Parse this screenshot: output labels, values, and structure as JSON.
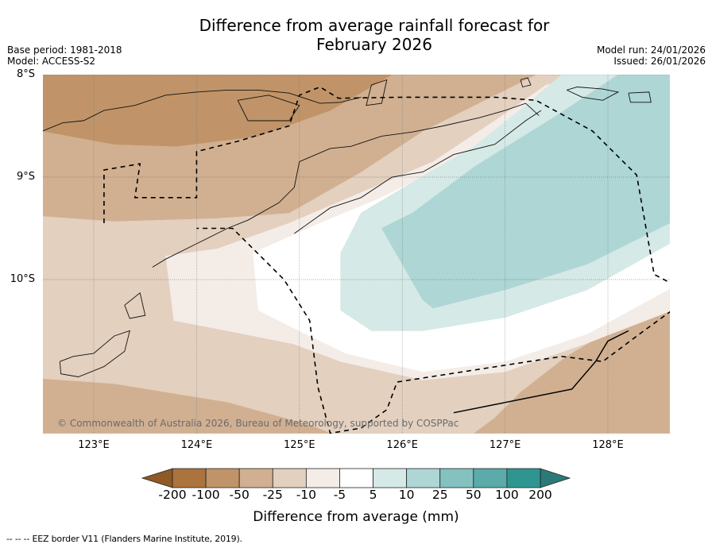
{
  "header": {
    "title_line1": "Difference from average rainfall forecast for",
    "title_line2": "February 2026",
    "base_period": "Base period: 1981-2018",
    "model": "Model: ACCESS-S2",
    "model_run": "Model run: 24/01/2026",
    "issued": "Issued: 26/01/2026"
  },
  "map": {
    "extent": {
      "lon_min": 122.5,
      "lon_max": 128.6,
      "lat_min": -11.5,
      "lat_max": -8.0
    },
    "lat_ticks": [
      {
        "value": -8,
        "label": "8°S"
      },
      {
        "value": -9,
        "label": "9°S"
      },
      {
        "value": -10,
        "label": "10°S"
      }
    ],
    "lon_ticks": [
      {
        "value": 123,
        "label": "123°E"
      },
      {
        "value": 124,
        "label": "124°E"
      },
      {
        "value": 125,
        "label": "125°E"
      },
      {
        "value": 126,
        "label": "126°E"
      },
      {
        "value": 127,
        "label": "127°E"
      },
      {
        "value": 128,
        "label": "128°E"
      }
    ],
    "copyright": "© Commonwealth of Australia 2026, Bureau of Meteorology, supported by COSPPac",
    "regions": [
      {
        "name": "dry-25-to-10",
        "color": "#e3d0bf",
        "poly": [
          [
            122.5,
            -9.4
          ],
          [
            128.6,
            -9.4
          ],
          [
            128.6,
            -11.5
          ],
          [
            122.5,
            -11.5
          ]
        ]
      },
      {
        "name": "dry-50-to-25-south",
        "color": "#d1b091",
        "poly": [
          [
            122.5,
            -10.97
          ],
          [
            123.2,
            -11.02
          ],
          [
            124.3,
            -11.2
          ],
          [
            125.1,
            -11.42
          ],
          [
            125.3,
            -11.5
          ],
          [
            122.5,
            -11.5
          ]
        ]
      },
      {
        "name": "dry-50-to-25-se",
        "color": "#d1b091",
        "poly": [
          [
            128.6,
            -10.27
          ],
          [
            128.1,
            -10.45
          ],
          [
            127.6,
            -10.75
          ],
          [
            127.15,
            -11.1
          ],
          [
            126.9,
            -11.35
          ],
          [
            126.7,
            -11.5
          ],
          [
            128.6,
            -11.5
          ]
        ]
      },
      {
        "name": "dry-50-to-25-north",
        "color": "#d1b091",
        "poly": [
          [
            122.5,
            -8.0
          ],
          [
            127.3,
            -8.0
          ],
          [
            126.2,
            -8.55
          ],
          [
            125.6,
            -8.95
          ],
          [
            124.9,
            -9.35
          ],
          [
            124.2,
            -9.4
          ],
          [
            123.2,
            -9.43
          ],
          [
            122.5,
            -9.38
          ]
        ]
      },
      {
        "name": "dry-100-to-50",
        "color": "#c09468",
        "poly": [
          [
            122.5,
            -8.0
          ],
          [
            125.9,
            -8.0
          ],
          [
            125.3,
            -8.35
          ],
          [
            124.6,
            -8.6
          ],
          [
            123.8,
            -8.7
          ],
          [
            123.2,
            -8.68
          ],
          [
            122.5,
            -8.55
          ]
        ]
      },
      {
        "name": "dry-10-to-5",
        "color": "#f4ece7",
        "poly": [
          [
            128.0,
            -8.0
          ],
          [
            127.4,
            -8.1
          ],
          [
            126.9,
            -8.45
          ],
          [
            126.3,
            -8.85
          ],
          [
            125.6,
            -9.15
          ],
          [
            124.9,
            -9.45
          ],
          [
            124.2,
            -9.7
          ],
          [
            123.7,
            -9.77
          ],
          [
            123.78,
            -10.4
          ],
          [
            124.3,
            -10.5
          ],
          [
            124.95,
            -10.63
          ],
          [
            125.4,
            -10.8
          ],
          [
            126.2,
            -10.98
          ],
          [
            127.0,
            -10.9
          ],
          [
            127.8,
            -10.62
          ],
          [
            128.6,
            -10.31
          ],
          [
            128.6,
            -8.0
          ]
        ]
      },
      {
        "name": "neutral",
        "color": "#ffffff",
        "poly": [
          [
            128.3,
            -8.0
          ],
          [
            127.6,
            -8.1
          ],
          [
            127.1,
            -8.45
          ],
          [
            126.5,
            -8.85
          ],
          [
            125.8,
            -9.2
          ],
          [
            125.2,
            -9.45
          ],
          [
            124.55,
            -9.74
          ],
          [
            124.6,
            -10.3
          ],
          [
            125.1,
            -10.55
          ],
          [
            125.45,
            -10.72
          ],
          [
            126.2,
            -10.9
          ],
          [
            127.0,
            -10.8
          ],
          [
            127.8,
            -10.53
          ],
          [
            128.6,
            -10.09
          ],
          [
            128.6,
            -8.0
          ]
        ]
      },
      {
        "name": "wet-5-to-10",
        "color": "#d5e9e7",
        "poly": [
          [
            128.6,
            -8.0
          ],
          [
            127.55,
            -8.0
          ],
          [
            127.2,
            -8.3
          ],
          [
            126.7,
            -8.7
          ],
          [
            126.1,
            -9.05
          ],
          [
            125.6,
            -9.35
          ],
          [
            125.4,
            -9.74
          ],
          [
            125.4,
            -10.3
          ],
          [
            125.7,
            -10.5
          ],
          [
            126.2,
            -10.5
          ],
          [
            127.0,
            -10.37
          ],
          [
            127.8,
            -10.1
          ],
          [
            128.6,
            -9.65
          ]
        ]
      },
      {
        "name": "wet-10-to-25",
        "color": "#aed6d5",
        "poly": [
          [
            128.6,
            -8.0
          ],
          [
            128.1,
            -8.0
          ],
          [
            127.5,
            -8.4
          ],
          [
            126.7,
            -8.9
          ],
          [
            126.1,
            -9.35
          ],
          [
            125.8,
            -9.5
          ],
          [
            126.2,
            -10.2
          ],
          [
            126.3,
            -10.28
          ],
          [
            127.0,
            -10.1
          ],
          [
            127.8,
            -9.85
          ],
          [
            128.6,
            -9.45
          ]
        ]
      }
    ],
    "coastlines": [
      {
        "name": "coast-timor-north",
        "points": [
          [
            122.5,
            -8.55
          ],
          [
            122.7,
            -8.47
          ],
          [
            122.9,
            -8.45
          ],
          [
            123.1,
            -8.35
          ],
          [
            123.4,
            -8.3
          ],
          [
            123.7,
            -8.2
          ],
          [
            124.0,
            -8.17
          ],
          [
            124.3,
            -8.15
          ],
          [
            124.6,
            -8.15
          ],
          [
            124.9,
            -8.18
          ],
          [
            125.2,
            -8.28
          ],
          [
            125.4,
            -8.27
          ],
          [
            125.6,
            -8.22
          ]
        ]
      },
      {
        "name": "coast-timor-south",
        "points": [
          [
            123.57,
            -9.88
          ],
          [
            123.7,
            -9.8
          ],
          [
            124.0,
            -9.65
          ],
          [
            124.3,
            -9.5
          ],
          [
            124.5,
            -9.42
          ],
          [
            124.8,
            -9.25
          ],
          [
            124.95,
            -9.1
          ],
          [
            125.0,
            -8.85
          ],
          [
            125.3,
            -8.72
          ],
          [
            125.5,
            -8.7
          ],
          [
            125.8,
            -8.6
          ],
          [
            126.1,
            -8.56
          ],
          [
            126.4,
            -8.5
          ],
          [
            126.75,
            -8.42
          ],
          [
            127.0,
            -8.35
          ],
          [
            127.2,
            -8.28
          ],
          [
            127.33,
            -8.4
          ]
        ]
      },
      {
        "name": "coast-timor-south-2",
        "points": [
          [
            124.95,
            -9.55
          ],
          [
            125.3,
            -9.3
          ],
          [
            125.6,
            -9.2
          ],
          [
            125.9,
            -9.0
          ],
          [
            126.2,
            -8.95
          ],
          [
            126.5,
            -8.78
          ],
          [
            126.9,
            -8.68
          ],
          [
            127.2,
            -8.45
          ],
          [
            127.35,
            -8.35
          ]
        ]
      },
      {
        "name": "coast-rote",
        "points": [
          [
            122.67,
            -10.8
          ],
          [
            122.8,
            -10.75
          ],
          [
            123.0,
            -10.72
          ],
          [
            123.2,
            -10.55
          ],
          [
            123.35,
            -10.5
          ],
          [
            123.3,
            -10.7
          ],
          [
            123.1,
            -10.85
          ],
          [
            122.85,
            -10.95
          ],
          [
            122.68,
            -10.92
          ],
          [
            122.67,
            -10.8
          ]
        ]
      },
      {
        "name": "coast-semau",
        "points": [
          [
            123.3,
            -10.25
          ],
          [
            123.45,
            -10.13
          ],
          [
            123.5,
            -10.35
          ],
          [
            123.35,
            -10.38
          ],
          [
            123.3,
            -10.25
          ]
        ]
      },
      {
        "name": "coast-alor",
        "points": [
          [
            124.4,
            -8.25
          ],
          [
            124.7,
            -8.2
          ],
          [
            125.0,
            -8.3
          ],
          [
            124.9,
            -8.45
          ],
          [
            124.5,
            -8.45
          ],
          [
            124.4,
            -8.25
          ]
        ]
      },
      {
        "name": "coast-wetar",
        "points": [
          [
            125.7,
            -8.1
          ],
          [
            125.85,
            -8.05
          ],
          [
            125.8,
            -8.28
          ],
          [
            125.65,
            -8.3
          ],
          [
            125.7,
            -8.1
          ]
        ]
      },
      {
        "name": "coast-kisar-group",
        "points": [
          [
            127.6,
            -8.15
          ],
          [
            127.7,
            -8.12
          ],
          [
            127.95,
            -8.14
          ],
          [
            128.1,
            -8.17
          ],
          [
            127.95,
            -8.25
          ],
          [
            127.75,
            -8.22
          ],
          [
            127.6,
            -8.15
          ]
        ]
      },
      {
        "name": "coast-leti",
        "points": [
          [
            128.2,
            -8.18
          ],
          [
            128.4,
            -8.17
          ],
          [
            128.42,
            -8.27
          ],
          [
            128.22,
            -8.27
          ],
          [
            128.2,
            -8.18
          ]
        ]
      },
      {
        "name": "coast-island-top",
        "points": [
          [
            127.15,
            -8.05
          ],
          [
            127.22,
            -8.03
          ],
          [
            127.25,
            -8.1
          ],
          [
            127.17,
            -8.12
          ],
          [
            127.15,
            -8.05
          ]
        ]
      }
    ],
    "eez_border": [
      [
        123.1,
        -9.45
      ],
      [
        123.1,
        -8.93
      ],
      [
        123.45,
        -8.87
      ],
      [
        123.4,
        -9.2
      ],
      [
        124.0,
        -9.2
      ],
      [
        124.0,
        -8.75
      ],
      [
        124.4,
        -8.65
      ],
      [
        124.9,
        -8.5
      ],
      [
        125.0,
        -8.2
      ],
      [
        125.2,
        -8.12
      ],
      [
        125.38,
        -8.23
      ],
      [
        126.0,
        -8.22
      ],
      [
        126.9,
        -8.22
      ],
      [
        127.3,
        -8.25
      ],
      [
        127.85,
        -8.55
      ],
      [
        128.28,
        -8.98
      ],
      [
        128.45,
        -9.95
      ],
      [
        128.83,
        -10.15
      ],
      [
        128.35,
        -10.5
      ],
      [
        127.95,
        -10.8
      ],
      [
        127.55,
        -10.75
      ],
      [
        125.95,
        -11.0
      ],
      [
        125.85,
        -11.27
      ],
      [
        125.6,
        -11.45
      ],
      [
        125.3,
        -11.5
      ],
      [
        125.18,
        -11.05
      ],
      [
        125.1,
        -10.4
      ],
      [
        124.85,
        -10.0
      ],
      [
        124.35,
        -9.5
      ],
      [
        124.0,
        -9.5
      ]
    ],
    "eez_solid_segment": [
      [
        126.5,
        -11.3
      ],
      [
        127.65,
        -11.07
      ],
      [
        127.88,
        -10.8
      ],
      [
        128.0,
        -10.6
      ],
      [
        128.2,
        -10.5
      ]
    ]
  },
  "colorbar": {
    "label": "Difference from average (mm)",
    "ticks": [
      "-200",
      "-100",
      "-50",
      "-25",
      "-10",
      "-5",
      "5",
      "10",
      "25",
      "50",
      "100",
      "200"
    ],
    "under_color": "#8f5a25",
    "over_color": "#2b7a78",
    "colors": [
      "#ab733d",
      "#c09468",
      "#d1b091",
      "#e3d0bf",
      "#f4ece7",
      "#ffffff",
      "#d5e9e7",
      "#aed6d5",
      "#84c2bf",
      "#5aaba9",
      "#2f9591"
    ]
  },
  "footnote": "--  --  -- EEZ border V11 (Flanders Marine Institute, 2019)."
}
